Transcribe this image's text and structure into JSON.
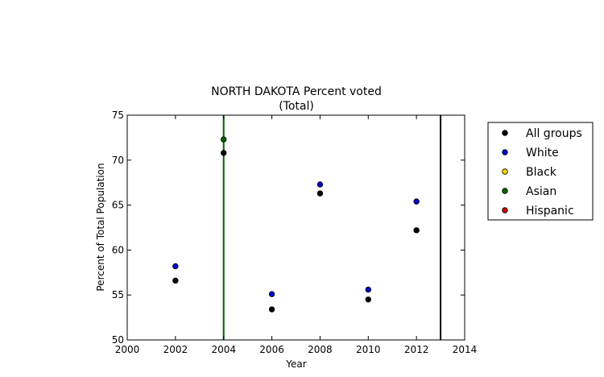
{
  "chart_data": {
    "type": "scatter",
    "title": "NORTH DAKOTA Percent voted",
    "subtitle": "(Total)",
    "xlabel": "Year",
    "ylabel": "Percent of Total Population",
    "xlim": [
      2000,
      2014
    ],
    "ylim": [
      50,
      75
    ],
    "xticks": [
      2000,
      2002,
      2004,
      2006,
      2008,
      2010,
      2012,
      2014
    ],
    "yticks": [
      50,
      55,
      60,
      65,
      70,
      75
    ],
    "grid": false,
    "legend_position": "outside-right",
    "series": [
      {
        "name": "All groups",
        "color": "#000000",
        "points": [
          [
            2002,
            56.6
          ],
          [
            2004,
            70.8
          ],
          [
            2006,
            53.4
          ],
          [
            2008,
            66.3
          ],
          [
            2010,
            54.5
          ],
          [
            2012,
            62.2
          ]
        ]
      },
      {
        "name": "White",
        "color": "#0000cc",
        "points": [
          [
            2002,
            58.2
          ],
          [
            2006,
            55.1
          ],
          [
            2008,
            67.3
          ],
          [
            2010,
            55.6
          ],
          [
            2012,
            65.4
          ]
        ]
      },
      {
        "name": "Black",
        "color": "#ffd700",
        "points": []
      },
      {
        "name": "Asian",
        "color": "#006400",
        "points": [
          [
            2004,
            72.3
          ]
        ]
      },
      {
        "name": "Hispanic",
        "color": "#cc0000",
        "points": []
      }
    ],
    "vertical_lines": [
      {
        "x": 2004,
        "color": "#006400"
      },
      {
        "x": 2013,
        "color": "#000000"
      }
    ]
  }
}
